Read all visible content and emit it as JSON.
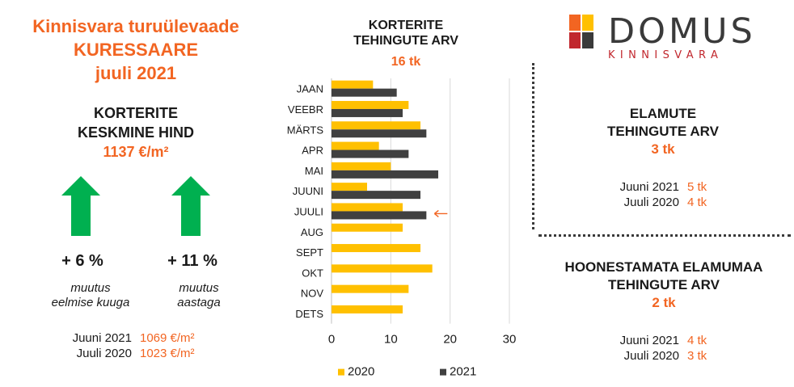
{
  "title": {
    "line1": "Kinnisvara turuülevaade",
    "line2": "KURESSAARE",
    "line3": "juuli 2021"
  },
  "price": {
    "heading1": "KORTERITE",
    "heading2": "KESKMINE HIND",
    "value": "1137 €/m²",
    "month_change": {
      "pct": "+ 6 %",
      "caption1": "muutus",
      "caption2": "eelmise kuuga"
    },
    "year_change": {
      "pct": "+ 11 %",
      "caption1": "muutus",
      "caption2": "aastaga"
    },
    "compare": [
      {
        "label": "Juuni 2021",
        "value": "1069 €/m²"
      },
      {
        "label": "Juuli 2020",
        "value": "1023 €/m²"
      }
    ],
    "arrow_color": "#00b050"
  },
  "chart_data": {
    "type": "bar",
    "orientation": "horizontal",
    "title_line1": "KORTERITE",
    "title_line2": "TEHINGUTE ARV",
    "total": "16 tk",
    "categories": [
      "JAAN",
      "VEEBR",
      "MÄRTS",
      "APR",
      "MAI",
      "JUUNI",
      "JUULI",
      "AUG",
      "SEPT",
      "OKT",
      "NOV",
      "DETS"
    ],
    "series": [
      {
        "name": "2020",
        "color": "#ffc000",
        "values": [
          7,
          13,
          15,
          8,
          10,
          6,
          12,
          12,
          15,
          17,
          13,
          12
        ]
      },
      {
        "name": "2021",
        "color": "#404040",
        "values": [
          11,
          12,
          16,
          13,
          18,
          15,
          16,
          null,
          null,
          null,
          null,
          null
        ]
      }
    ],
    "xlim": [
      0,
      30
    ],
    "xticks": [
      "0",
      "10",
      "20",
      "30"
    ],
    "grid": "vertical",
    "legend": "bottom",
    "highlight_category": "JUULI",
    "highlight_color": "#f26522"
  },
  "houses": {
    "heading1": "ELAMUTE",
    "heading2": "TEHINGUTE ARV",
    "value": "3 tk",
    "compare": [
      {
        "label": "Juuni 2021",
        "value": "5 tk"
      },
      {
        "label": "Juuli 2020",
        "value": "4 tk"
      }
    ]
  },
  "land": {
    "heading1": "HOONESTAMATA ELAMUMAA",
    "heading2": "TEHINGUTE ARV",
    "value": "2 tk",
    "compare": [
      {
        "label": "Juuni 2021",
        "value": "4 tk"
      },
      {
        "label": "Juuli 2020",
        "value": "3 tk"
      }
    ]
  },
  "logo": {
    "name": "DOMUS",
    "subtitle": "KINNISVARA",
    "colors": [
      "#f26522",
      "#ffc000",
      "#c1272d",
      "#3a3a3a"
    ]
  }
}
